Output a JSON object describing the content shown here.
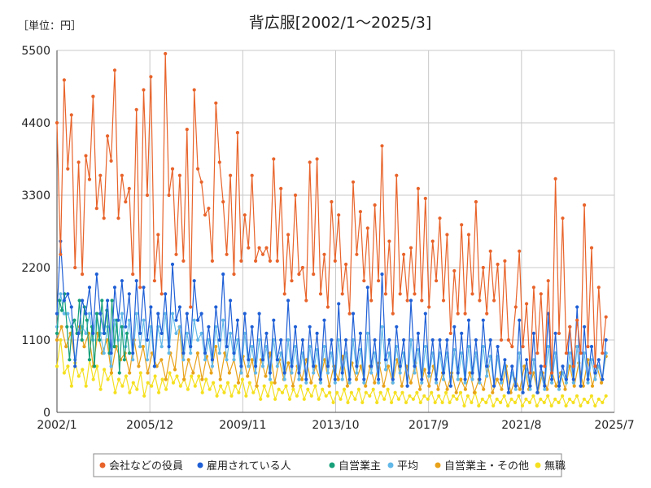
{
  "chart_data": {
    "type": "line",
    "title": "背広服[2002/1～2025/3]",
    "unit_label": "［単位：円］",
    "xlabel": "",
    "ylabel": "",
    "x_start": "2002/1",
    "x_end": "2025/7",
    "x_ticks": [
      "2002/1",
      "2005/12",
      "2009/11",
      "2013/10",
      "2017/9",
      "2021/8",
      "2025/7"
    ],
    "y_ticks": [
      0,
      1100,
      2200,
      3300,
      4400,
      5500
    ],
    "ylim": [
      0,
      5500
    ],
    "grid": true,
    "legend_position": "bottom",
    "series": [
      {
        "name": "会社などの役員",
        "color": "#e8632a",
        "values": [
          4400,
          2400,
          5050,
          3700,
          4520,
          2200,
          3800,
          2100,
          3900,
          3540,
          4800,
          3100,
          3600,
          2950,
          4200,
          3820,
          5200,
          2950,
          3600,
          3200,
          3400,
          2100,
          4600,
          1900,
          4900,
          3300,
          5100,
          2000,
          2700,
          1800,
          5450,
          3300,
          3700,
          2400,
          3600,
          2300,
          4300,
          1600,
          4900,
          3700,
          3500,
          3000,
          3100,
          2300,
          4700,
          3800,
          3200,
          2400,
          3600,
          2100,
          4250,
          2300,
          3000,
          2500,
          3600,
          2300,
          2500,
          2400,
          2500,
          2300,
          3850,
          2300,
          3400,
          1800,
          2700,
          2000,
          3300,
          2100,
          2200,
          1700,
          3800,
          2100,
          3850,
          1800,
          2400,
          1600,
          3200,
          2300,
          3000,
          1800,
          2250,
          1500,
          3500,
          2400,
          3050,
          2000,
          2800,
          1700,
          3150,
          2000,
          4050,
          1800,
          2600,
          1500,
          3600,
          1800,
          2400,
          1700,
          2500,
          1800,
          3400,
          1700,
          3250,
          1600,
          2600,
          2000,
          2950,
          1700,
          2700,
          1200,
          2150,
          1500,
          2850,
          1500,
          2700,
          1800,
          3200,
          1700,
          2200,
          1500,
          2450,
          1700,
          2250,
          1100,
          2300,
          1100,
          1000,
          1600,
          2450,
          1000,
          1650,
          600,
          1900,
          900,
          1800,
          700,
          2000,
          600,
          3550,
          1200,
          2950,
          900,
          1300,
          700,
          1400,
          900,
          3150,
          1000,
          2500,
          700,
          1900,
          900,
          1450
        ]
      },
      {
        "name": "雇用されている人",
        "color": "#1f5fd6",
        "values": [
          1500,
          2600,
          1700,
          1800,
          1600,
          700,
          1200,
          1700,
          1500,
          1900,
          1200,
          2100,
          1500,
          1200,
          1700,
          900,
          1900,
          1400,
          2000,
          1300,
          1800,
          900,
          2000,
          1200,
          1900,
          1100,
          1600,
          700,
          1500,
          1200,
          1800,
          1000,
          2250,
          1400,
          1600,
          900,
          1500,
          1000,
          2000,
          1400,
          1500,
          900,
          1300,
          800,
          1600,
          1100,
          2100,
          1000,
          1700,
          900,
          1400,
          700,
          1500,
          800,
          1300,
          700,
          1500,
          800,
          1200,
          600,
          1400,
          800,
          1100,
          600,
          1700,
          700,
          1300,
          600,
          1100,
          500,
          1300,
          700,
          1200,
          500,
          1400,
          700,
          1100,
          500,
          1650,
          600,
          1100,
          500,
          1500,
          700,
          1200,
          500,
          1900,
          700,
          1100,
          500,
          2100,
          800,
          1100,
          500,
          1300,
          700,
          1100,
          400,
          1700,
          700,
          1200,
          500,
          1500,
          600,
          1100,
          500,
          1100,
          600,
          1100,
          400,
          1300,
          600,
          1200,
          500,
          1400,
          600,
          1100,
          500,
          1400,
          700,
          1100,
          400,
          1000,
          500,
          800,
          300,
          700,
          400,
          1400,
          300,
          800,
          400,
          1200,
          300,
          700,
          400,
          1500,
          500,
          1200,
          400,
          700,
          500,
          1300,
          500,
          1600,
          400,
          1300,
          500,
          1000,
          600,
          800,
          500,
          1100
        ]
      },
      {
        "name": "自営業主",
        "color": "#17a07a",
        "values": [
          1200,
          1700,
          1550,
          1800,
          1300,
          800,
          1300,
          1400,
          1200,
          1700,
          1100,
          1600,
          1400,
          800,
          1300,
          700,
          1500,
          1100,
          1700,
          1200,
          1550,
          900,
          1700,
          1000,
          1400,
          600,
          1300,
          800,
          1200,
          900
        ]
      },
      {
        "name": "平均",
        "color": "#62b8e8",
        "values": [
          1300,
          1800,
          1500,
          1500,
          1300,
          800,
          1200,
          1300,
          1200,
          1500,
          1100,
          1500,
          1200,
          900,
          1300,
          700,
          1400,
          1100,
          1500,
          1000,
          1400,
          800,
          1500,
          1000,
          1400,
          800,
          1300,
          700,
          1300,
          1000,
          1500,
          900,
          1500,
          1200,
          1300,
          800,
          1200,
          900,
          1400,
          1100,
          1200,
          800,
          1100,
          700,
          1300,
          900,
          1400,
          800,
          1200,
          800,
          1100,
          600,
          1200,
          700,
          1000,
          600,
          1100,
          700,
          1000,
          500,
          1100,
          700,
          900,
          500,
          1100,
          600,
          1000,
          500,
          900,
          450,
          1000,
          600,
          950,
          450,
          1000,
          600,
          900,
          450,
          1100,
          500,
          900,
          450,
          1100,
          600,
          950,
          450,
          1200,
          600,
          900,
          450,
          1300,
          650,
          900,
          450,
          1000,
          600,
          900,
          400,
          1100,
          600,
          950,
          450,
          1000,
          550,
          900,
          450,
          900,
          500,
          900,
          400,
          950,
          500,
          900,
          450,
          1000,
          500,
          900,
          450,
          1000,
          550,
          850,
          400,
          850,
          450,
          700,
          300,
          600,
          350,
          900,
          300,
          650,
          350,
          800,
          300,
          600,
          350,
          1000,
          450,
          900,
          350,
          600,
          450,
          900,
          450,
          1000,
          400,
          900,
          450,
          800,
          500,
          700,
          500,
          900
        ]
      },
      {
        "name": "自営業主・その他",
        "color": "#e8a21a",
        "values": [
          1100,
          1300,
          1000,
          1200,
          800,
          1300,
          1000,
          1200,
          700,
          1200,
          900,
          1100,
          600,
          1000,
          800,
          900,
          600,
          1100,
          700,
          1000,
          600,
          900,
          700,
          800,
          500,
          900,
          650,
          1300,
          500,
          800,
          600,
          900,
          500,
          850,
          600,
          1000,
          500,
          900,
          600,
          800,
          450,
          850,
          550,
          800,
          400,
          800,
          550,
          900,
          450,
          800,
          500,
          750,
          400,
          700,
          500,
          800,
          450,
          700,
          500,
          800,
          400,
          700,
          500,
          850,
          400,
          750,
          500,
          700,
          400,
          700,
          450,
          750,
          400,
          700,
          450,
          800,
          400,
          700,
          450,
          750,
          350,
          650,
          400,
          700,
          350,
          600,
          350,
          600,
          300,
          500,
          350,
          600,
          300,
          500,
          350,
          700,
          300,
          500,
          350,
          700,
          300,
          500,
          350,
          700,
          350,
          600,
          300,
          600,
          350,
          650,
          400,
          600,
          350,
          700,
          400,
          750,
          400,
          800,
          400,
          700,
          450,
          850
        ]
      },
      {
        "name": "無職",
        "color": "#f5e020",
        "values": [
          700,
          1100,
          600,
          700,
          400,
          750,
          550,
          650,
          400,
          800,
          500,
          700,
          350,
          650,
          500,
          600,
          300,
          500,
          400,
          550,
          300,
          450,
          350,
          600,
          250,
          450,
          400,
          550,
          300,
          500,
          350,
          600,
          450,
          550,
          400,
          500,
          350,
          550,
          400,
          550,
          300,
          500,
          350,
          450,
          250,
          400,
          300,
          450,
          250,
          400,
          300,
          500,
          250,
          450,
          300,
          400,
          200,
          400,
          250,
          450,
          200,
          350,
          300,
          400,
          200,
          350,
          250,
          400,
          200,
          350,
          250,
          400,
          200,
          350,
          250,
          300,
          150,
          300,
          200,
          350,
          150,
          300,
          200,
          350,
          150,
          300,
          250,
          350,
          150,
          300,
          200,
          350,
          150,
          300,
          200,
          300,
          150,
          250,
          200,
          300,
          150,
          250,
          200,
          300,
          150,
          250,
          150,
          300,
          150,
          250,
          200,
          300,
          100,
          250,
          150,
          300,
          100,
          200,
          150,
          250,
          100,
          200,
          150,
          250,
          100,
          200,
          150,
          250,
          100,
          200,
          150,
          250,
          100,
          200,
          150,
          250,
          100,
          200,
          150,
          250,
          100,
          200,
          150,
          250,
          100,
          200,
          150,
          250,
          100,
          200,
          150,
          250
        ]
      }
    ]
  }
}
